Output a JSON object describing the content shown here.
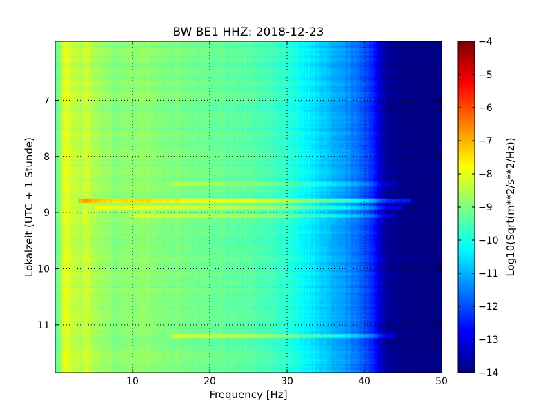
{
  "chart_data": {
    "type": "heatmap",
    "title": "BW BE1 HHZ: 2018-12-23",
    "xlabel": "Frequency [Hz]",
    "ylabel": "Lokalzeit (UTC + 1 Stunde)",
    "xlim": [
      0,
      50
    ],
    "ylim": [
      5.95,
      11.85
    ],
    "y_inverted": true,
    "x_ticks": [
      10,
      20,
      30,
      40,
      50
    ],
    "y_ticks": [
      7,
      8,
      9,
      10,
      11
    ],
    "grid": "dotted",
    "colormap": "jet",
    "colorbar": {
      "label": "Log10(Sqrt(m**2/s**2/Hz))",
      "range": [
        -14,
        -4
      ],
      "ticks": [
        -4,
        -5,
        -6,
        -7,
        -8,
        -9,
        -10,
        -11,
        -12,
        -13,
        -14
      ]
    },
    "psd_profile_log10": {
      "frequency_hz": [
        0.3,
        1,
        1.5,
        3,
        4,
        5,
        8,
        12,
        15,
        20,
        25,
        29,
        31,
        33,
        35,
        37,
        39,
        41,
        42,
        43,
        45,
        50
      ],
      "level": [
        -9.2,
        -8.2,
        -8.0,
        -8.5,
        -8.2,
        -8.6,
        -8.9,
        -8.9,
        -9.0,
        -9.2,
        -9.4,
        -9.7,
        -10.0,
        -10.4,
        -10.8,
        -11.2,
        -11.6,
        -12.3,
        -13.2,
        -13.8,
        -14.0,
        -14.0
      ]
    },
    "high_amplitude_bands": [
      {
        "time_h": 8.5,
        "f_min_hz": 15,
        "f_max_hz": 44,
        "delta": 0.5
      },
      {
        "time_h": 8.78,
        "f_min_hz": 3,
        "f_max_hz": 46,
        "delta": 1.4
      },
      {
        "time_h": 8.92,
        "f_min_hz": 5,
        "f_max_hz": 45,
        "delta": 1.0
      },
      {
        "time_h": 9.07,
        "f_min_hz": 10,
        "f_max_hz": 44,
        "delta": 0.6
      },
      {
        "time_h": 11.2,
        "f_min_hz": 15,
        "f_max_hz": 44,
        "delta": 0.9
      }
    ]
  },
  "colors": {
    "background": "#ffffff",
    "grid": "#000000"
  }
}
